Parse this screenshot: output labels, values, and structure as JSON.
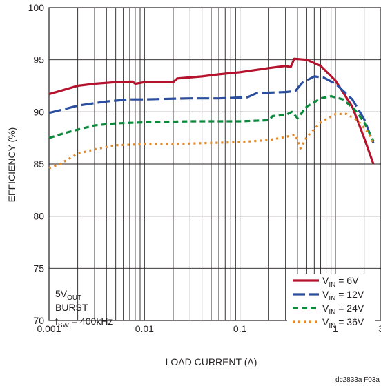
{
  "chart_data": {
    "type": "line",
    "title": "",
    "xlabel": "LOAD CURRENT (A)",
    "ylabel": "EFFICIENCY (%)",
    "x_scale": "log",
    "xlim": [
      0.001,
      3
    ],
    "ylim": [
      70,
      100
    ],
    "grid": true,
    "x_ticks": [
      0.001,
      0.01,
      0.1,
      1,
      3
    ],
    "x_tick_labels": [
      "0.001",
      "0.01",
      "0.1",
      "1",
      "3"
    ],
    "y_ticks": [
      70,
      75,
      80,
      85,
      90,
      95,
      100
    ],
    "y_tick_labels": [
      "70",
      "75",
      "80",
      "85",
      "90",
      "95",
      "100"
    ],
    "legend_position": "bottom-right",
    "annotation": {
      "line1_main": "5V",
      "line1_sub": "OUT",
      "line2": "BURST",
      "line3_main": "f",
      "line3_sub": "SW",
      "line3_rest": " = 400kHz"
    },
    "figure_id": "dc2833a F03a",
    "series": [
      {
        "legend_main": "V",
        "legend_sub": "IN",
        "legend_rest": " = 6V",
        "color": "#b5122e",
        "dash": "",
        "points": [
          [
            0.001,
            91.7
          ],
          [
            0.0013,
            92.0
          ],
          [
            0.002,
            92.5
          ],
          [
            0.003,
            92.7
          ],
          [
            0.005,
            92.85
          ],
          [
            0.0075,
            92.9
          ],
          [
            0.008,
            92.7
          ],
          [
            0.01,
            92.85
          ],
          [
            0.02,
            92.85
          ],
          [
            0.022,
            93.2
          ],
          [
            0.04,
            93.4
          ],
          [
            0.06,
            93.6
          ],
          [
            0.1,
            93.8
          ],
          [
            0.2,
            94.2
          ],
          [
            0.3,
            94.4
          ],
          [
            0.34,
            94.3
          ],
          [
            0.37,
            95.1
          ],
          [
            0.5,
            95.0
          ],
          [
            0.7,
            94.4
          ],
          [
            1.0,
            93.0
          ],
          [
            1.5,
            90.5
          ],
          [
            2.0,
            87.5
          ],
          [
            2.5,
            85.0
          ]
        ]
      },
      {
        "legend_main": "V",
        "legend_sub": "IN",
        "legend_rest": " = 12V",
        "color": "#2b4f9e",
        "dash": "18,6",
        "points": [
          [
            0.001,
            89.9
          ],
          [
            0.0015,
            90.3
          ],
          [
            0.002,
            90.6
          ],
          [
            0.004,
            91.0
          ],
          [
            0.007,
            91.2
          ],
          [
            0.01,
            91.2
          ],
          [
            0.03,
            91.3
          ],
          [
            0.06,
            91.3
          ],
          [
            0.12,
            91.4
          ],
          [
            0.15,
            91.8
          ],
          [
            0.3,
            91.9
          ],
          [
            0.38,
            92.0
          ],
          [
            0.45,
            92.8
          ],
          [
            0.6,
            93.4
          ],
          [
            0.75,
            93.3
          ],
          [
            1.0,
            92.7
          ],
          [
            1.5,
            91.2
          ],
          [
            2.0,
            89.3
          ],
          [
            2.5,
            87.0
          ]
        ]
      },
      {
        "legend_main": "V",
        "legend_sub": "IN",
        "legend_rest": " = 24V",
        "color": "#0b8a3c",
        "dash": "8,5",
        "points": [
          [
            0.001,
            87.5
          ],
          [
            0.0015,
            88.0
          ],
          [
            0.002,
            88.3
          ],
          [
            0.003,
            88.7
          ],
          [
            0.005,
            88.9
          ],
          [
            0.01,
            89.0
          ],
          [
            0.03,
            89.1
          ],
          [
            0.1,
            89.1
          ],
          [
            0.2,
            89.2
          ],
          [
            0.22,
            89.6
          ],
          [
            0.3,
            89.7
          ],
          [
            0.35,
            90.0
          ],
          [
            0.4,
            89.4
          ],
          [
            0.5,
            90.5
          ],
          [
            0.7,
            91.3
          ],
          [
            0.9,
            91.5
          ],
          [
            1.2,
            91.2
          ],
          [
            1.6,
            90.2
          ],
          [
            2.0,
            89.0
          ],
          [
            2.5,
            87.2
          ]
        ]
      },
      {
        "legend_main": "V",
        "legend_sub": "IN",
        "legend_rest": " = 36V",
        "color": "#e08a2e",
        "dash": "3,5",
        "points": [
          [
            0.001,
            84.6
          ],
          [
            0.0013,
            85.0
          ],
          [
            0.002,
            86.0
          ],
          [
            0.003,
            86.4
          ],
          [
            0.005,
            86.8
          ],
          [
            0.01,
            86.9
          ],
          [
            0.02,
            86.9
          ],
          [
            0.04,
            87.0
          ],
          [
            0.1,
            87.1
          ],
          [
            0.2,
            87.3
          ],
          [
            0.3,
            87.6
          ],
          [
            0.38,
            87.8
          ],
          [
            0.43,
            86.5
          ],
          [
            0.5,
            87.6
          ],
          [
            0.7,
            89.0
          ],
          [
            1.0,
            89.8
          ],
          [
            1.3,
            89.8
          ],
          [
            1.7,
            89.2
          ],
          [
            2.2,
            88.0
          ],
          [
            2.5,
            87.0
          ]
        ]
      }
    ]
  }
}
